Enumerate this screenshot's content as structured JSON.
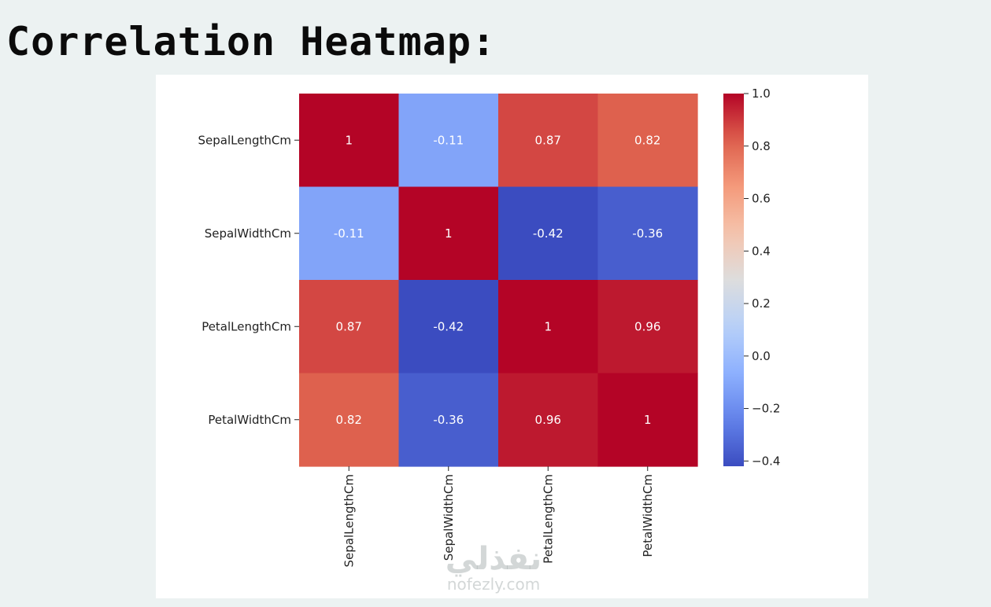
{
  "page": {
    "title": "Correlation Heatmap:"
  },
  "watermark": {
    "arabic": "نفذلي",
    "latin": "nofezly.com"
  },
  "chart_data": {
    "type": "heatmap",
    "colormap": "coolwarm",
    "rows": [
      "SepalLengthCm",
      "SepalWidthCm",
      "PetalLengthCm",
      "PetalWidthCm"
    ],
    "columns": [
      "SepalLengthCm",
      "SepalWidthCm",
      "PetalLengthCm",
      "PetalWidthCm"
    ],
    "values": [
      [
        1,
        -0.11,
        0.87,
        0.82
      ],
      [
        -0.11,
        1,
        -0.42,
        -0.36
      ],
      [
        0.87,
        -0.42,
        1,
        0.96
      ],
      [
        0.82,
        -0.36,
        0.96,
        1
      ]
    ],
    "annotations": [
      [
        "1",
        "-0.11",
        "0.87",
        "0.82"
      ],
      [
        "-0.11",
        "1",
        "-0.42",
        "-0.36"
      ],
      [
        "0.87",
        "-0.42",
        "1",
        "0.96"
      ],
      [
        "0.82",
        "-0.36",
        "0.96",
        "1"
      ]
    ],
    "colorbar": {
      "range": [
        -0.42,
        1.0
      ],
      "ticks": [
        1.0,
        0.8,
        0.6,
        0.4,
        0.2,
        0.0,
        -0.2,
        -0.4
      ],
      "tick_labels": [
        "1.0",
        "0.8",
        "0.6",
        "0.4",
        "0.2",
        "0.0",
        "−0.2",
        "−0.4"
      ]
    }
  }
}
